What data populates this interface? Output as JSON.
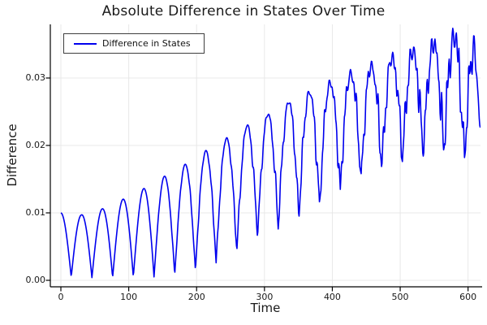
{
  "chart_data": {
    "type": "line",
    "title": "Absolute Difference in States Over Time",
    "xlabel": "Time",
    "ylabel": "Difference",
    "x_ticks": [
      0,
      100,
      200,
      300,
      400,
      500,
      600
    ],
    "x_tick_labels": [
      "0",
      "100",
      "200",
      "300",
      "400",
      "500",
      "600"
    ],
    "y_ticks": [
      0.0,
      0.01,
      0.02,
      0.03
    ],
    "y_tick_labels": [
      "0.00",
      "0.01",
      "0.02",
      "0.03"
    ],
    "xlim": [
      -15.5,
      618
    ],
    "ylim": [
      -0.001,
      0.038
    ],
    "grid": true,
    "legend_position": "top-left",
    "grid_color": "#e8e8e8",
    "axis_color": "#000000",
    "text_color": "#191919",
    "background_color": "#ffffff",
    "series": [
      {
        "name": "Difference in States",
        "color": "#0000ee",
        "t_start": 0,
        "t_end": 618,
        "dt": 0.75,
        "start_value": 0.01,
        "end_value": 0.022,
        "peak_value": 0.037,
        "oscillation_period": 30.5,
        "max_envelope": [
          [
            0,
            0.01
          ],
          [
            30,
            0.0097
          ],
          [
            61,
            0.0106
          ],
          [
            91,
            0.012
          ],
          [
            122,
            0.0136
          ],
          [
            152,
            0.0154
          ],
          [
            183,
            0.0172
          ],
          [
            213,
            0.0192
          ],
          [
            244,
            0.0211
          ],
          [
            274,
            0.023
          ],
          [
            305,
            0.0247
          ],
          [
            336,
            0.0266
          ],
          [
            366,
            0.0281
          ],
          [
            397,
            0.0296
          ],
          [
            427,
            0.031
          ],
          [
            458,
            0.0322
          ],
          [
            488,
            0.0334
          ],
          [
            519,
            0.0344
          ],
          [
            549,
            0.0356
          ],
          [
            580,
            0.037
          ],
          [
            610,
            0.0355
          ],
          [
            618,
            0.024
          ]
        ],
        "min_envelope": [
          [
            15,
            0.0005
          ],
          [
            46,
            0.0004
          ],
          [
            76,
            0.0004
          ],
          [
            107,
            0.0005
          ],
          [
            137,
            0.0005
          ],
          [
            168,
            0.0008
          ],
          [
            198,
            0.0014
          ],
          [
            229,
            0.0026
          ],
          [
            259,
            0.0042
          ],
          [
            290,
            0.0064
          ],
          [
            320,
            0.0076
          ],
          [
            351,
            0.0092
          ],
          [
            381,
            0.011
          ],
          [
            412,
            0.0135
          ],
          [
            442,
            0.0151
          ],
          [
            473,
            0.0166
          ],
          [
            503,
            0.0176
          ],
          [
            534,
            0.0184
          ],
          [
            564,
            0.019
          ],
          [
            595,
            0.0182
          ],
          [
            618,
            0.018
          ]
        ],
        "texture": {
          "onset": 120,
          "full": 600,
          "flank_depth": 0.28,
          "top_depth": 0.1,
          "wiggle_periods": [
            7.9,
            3.6,
            5.2
          ],
          "wiggle_phases": [
            0.9,
            2.1,
            1.3
          ],
          "wiggle_mix": [
            0.6,
            0.4
          ]
        }
      }
    ]
  }
}
